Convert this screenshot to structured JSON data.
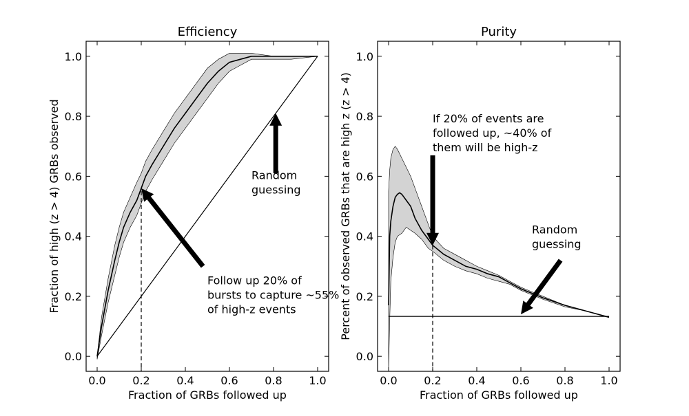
{
  "chart_data": [
    {
      "type": "line",
      "title": "Efficiency",
      "xlabel": "Fraction of GRBs followed up",
      "ylabel": "Fraction of high (z > 4) GRBs observed",
      "xlim": [
        -0.05,
        1.05
      ],
      "ylim": [
        -0.05,
        1.05
      ],
      "xticks": [
        "0.0",
        "0.2",
        "0.4",
        "0.6",
        "0.8",
        "1.0"
      ],
      "yticks": [
        "0.0",
        "0.2",
        "0.4",
        "0.6",
        "0.8",
        "1.0"
      ],
      "grid": false,
      "series": [
        {
          "role": "mean",
          "x": [
            0.0,
            0.02,
            0.05,
            0.08,
            0.1,
            0.12,
            0.15,
            0.18,
            0.2,
            0.22,
            0.25,
            0.3,
            0.35,
            0.4,
            0.45,
            0.5,
            0.55,
            0.6,
            0.65,
            0.7,
            0.8,
            0.9,
            1.0
          ],
          "y": [
            0.0,
            0.1,
            0.22,
            0.32,
            0.38,
            0.43,
            0.48,
            0.52,
            0.56,
            0.6,
            0.64,
            0.7,
            0.76,
            0.81,
            0.86,
            0.91,
            0.95,
            0.98,
            0.99,
            1.0,
            1.0,
            1.0,
            1.0
          ]
        },
        {
          "role": "band",
          "x": [
            0.0,
            0.02,
            0.05,
            0.08,
            0.1,
            0.12,
            0.15,
            0.18,
            0.2,
            0.22,
            0.25,
            0.3,
            0.35,
            0.4,
            0.45,
            0.5,
            0.55,
            0.6,
            0.65,
            0.7,
            0.8,
            0.88,
            1.0
          ],
          "upper": [
            0.0,
            0.13,
            0.26,
            0.37,
            0.43,
            0.48,
            0.53,
            0.58,
            0.61,
            0.65,
            0.69,
            0.75,
            0.81,
            0.86,
            0.91,
            0.96,
            0.99,
            1.01,
            1.01,
            1.01,
            1.0,
            1.0,
            1.0
          ],
          "lower": [
            -0.01,
            0.07,
            0.18,
            0.27,
            0.33,
            0.38,
            0.43,
            0.47,
            0.51,
            0.55,
            0.59,
            0.65,
            0.71,
            0.76,
            0.81,
            0.86,
            0.91,
            0.95,
            0.97,
            0.99,
            0.99,
            0.99,
            1.0
          ]
        },
        {
          "role": "random",
          "x": [
            0.0,
            1.0
          ],
          "y": [
            0.0,
            1.0
          ]
        }
      ],
      "vline": {
        "x": 0.2,
        "y_top": 0.55
      },
      "arrows": [
        {
          "from": [
            0.48,
            0.3
          ],
          "to": [
            0.2,
            0.56
          ]
        },
        {
          "from": [
            0.81,
            0.61
          ],
          "to": [
            0.81,
            0.81
          ]
        }
      ],
      "annotations": [
        {
          "lines": [
            "Random",
            "guessing"
          ],
          "x": 0.7,
          "y": 0.59
        },
        {
          "lines": [
            "Follow up 20% of",
            "bursts to capture ~55%",
            "of high-z events"
          ],
          "x": 0.5,
          "y": 0.24
        }
      ]
    },
    {
      "type": "line",
      "title": "Purity",
      "xlabel": "Fraction of GRBs followed up",
      "ylabel": "Percent of observed GRBs that are high z (z > 4)",
      "xlim": [
        -0.05,
        1.05
      ],
      "ylim": [
        -0.05,
        1.05
      ],
      "xticks": [
        "0.0",
        "0.2",
        "0.4",
        "0.6",
        "0.8",
        "1.0"
      ],
      "yticks": [
        "0.0",
        "0.2",
        "0.4",
        "0.6",
        "0.8",
        "1.0"
      ],
      "grid": false,
      "series": [
        {
          "role": "mean",
          "x": [
            0.0,
            0.005,
            0.01,
            0.02,
            0.03,
            0.04,
            0.05,
            0.06,
            0.08,
            0.1,
            0.12,
            0.15,
            0.18,
            0.2,
            0.25,
            0.3,
            0.35,
            0.4,
            0.45,
            0.5,
            0.55,
            0.6,
            0.65,
            0.7,
            0.8,
            0.9,
            1.0
          ],
          "y": [
            0.17,
            0.4,
            0.45,
            0.5,
            0.53,
            0.54,
            0.545,
            0.54,
            0.52,
            0.5,
            0.46,
            0.42,
            0.39,
            0.37,
            0.34,
            0.32,
            0.3,
            0.29,
            0.275,
            0.265,
            0.245,
            0.225,
            0.21,
            0.195,
            0.17,
            0.15,
            0.13
          ]
        },
        {
          "role": "band",
          "x": [
            0.0,
            0.005,
            0.01,
            0.02,
            0.03,
            0.04,
            0.06,
            0.08,
            0.1,
            0.12,
            0.15,
            0.18,
            0.2,
            0.25,
            0.3,
            0.35,
            0.4,
            0.45,
            0.5,
            0.55,
            0.6,
            0.65,
            0.7,
            0.8,
            0.9,
            1.0
          ],
          "upper": [
            0.55,
            0.62,
            0.66,
            0.69,
            0.7,
            0.69,
            0.66,
            0.63,
            0.6,
            0.56,
            0.5,
            0.44,
            0.4,
            0.36,
            0.34,
            0.32,
            0.3,
            0.285,
            0.27,
            0.25,
            0.23,
            0.215,
            0.2,
            0.17,
            0.15,
            0.13
          ],
          "lower": [
            -0.05,
            0.12,
            0.25,
            0.33,
            0.38,
            0.4,
            0.41,
            0.43,
            0.42,
            0.41,
            0.39,
            0.36,
            0.35,
            0.32,
            0.3,
            0.285,
            0.275,
            0.26,
            0.25,
            0.24,
            0.22,
            0.205,
            0.19,
            0.165,
            0.15,
            0.13
          ]
        },
        {
          "role": "random",
          "x": [
            0.0,
            1.0
          ],
          "y": [
            0.133,
            0.133
          ]
        }
      ],
      "vline": {
        "x": 0.2,
        "y_top": 0.37
      },
      "arrows": [
        {
          "from": [
            0.2,
            0.67
          ],
          "to": [
            0.2,
            0.37
          ]
        },
        {
          "from": [
            0.78,
            0.32
          ],
          "to": [
            0.6,
            0.14
          ]
        }
      ],
      "annotations": [
        {
          "lines": [
            "If 20% of events are",
            "followed up, ~40% of",
            "them will be high-z"
          ],
          "x": 0.2,
          "y": 0.78
        },
        {
          "lines": [
            "Random",
            "guessing"
          ],
          "x": 0.65,
          "y": 0.41
        }
      ]
    }
  ]
}
